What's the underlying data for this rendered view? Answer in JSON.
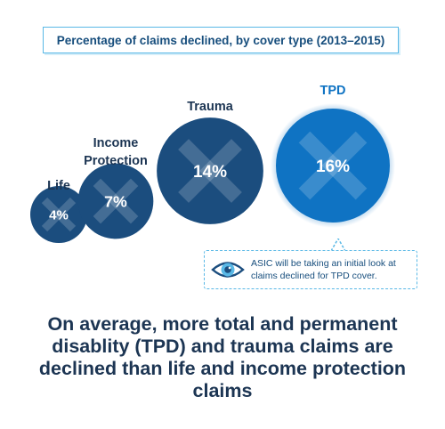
{
  "chart_data": {
    "type": "bubble",
    "title": "Percentage of claims declined, by cover type (2013–2015)",
    "categories": [
      "Life",
      "Income Protection",
      "Trauma",
      "TPD"
    ],
    "values": [
      4,
      7,
      14,
      16
    ],
    "value_labels": [
      "4%",
      "7%",
      "14%",
      "16%"
    ],
    "unit": "%",
    "colors": [
      "#1b4d7e",
      "#1b4d7e",
      "#1b4d7e",
      "#0f73c3"
    ]
  },
  "callout": {
    "icon": "eye-icon",
    "text": "ASIC will be taking an initial look at claims declined for TPD cover."
  },
  "headline": "On average, more total and permanent disablity (TPD) and trauma claims are declined than life and income protection claims"
}
